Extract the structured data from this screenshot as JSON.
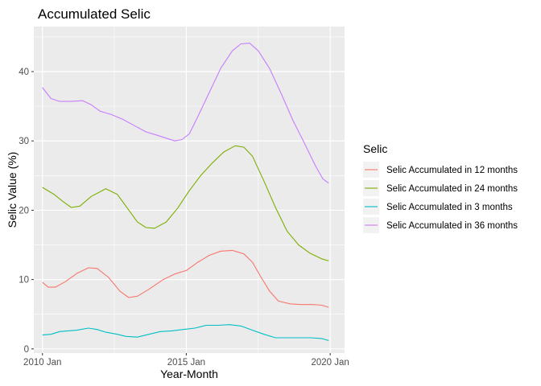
{
  "chart_data": {
    "type": "line",
    "title": "Accumulated Selic",
    "xlabel": "Year-Month",
    "ylabel": "Selic Value (%)",
    "x_ticks": [
      "2010 Jan",
      "2015 Jan",
      "2020 Jan"
    ],
    "y_ticks": [
      0,
      10,
      20,
      30,
      40
    ],
    "xlim": [
      2009.7,
      2020.5
    ],
    "ylim": [
      -0.6,
      46.5
    ],
    "grid": true,
    "background": "#EBEBEB",
    "legend": {
      "title": "Selic",
      "position": "right"
    },
    "series": [
      {
        "name": "Selic Accumulated in 12 months",
        "color": "#F8766D",
        "points": [
          [
            2010.0,
            9.6
          ],
          [
            2010.2,
            8.9
          ],
          [
            2010.45,
            8.9
          ],
          [
            2010.8,
            9.7
          ],
          [
            2011.2,
            10.9
          ],
          [
            2011.6,
            11.7
          ],
          [
            2011.9,
            11.6
          ],
          [
            2012.3,
            10.3
          ],
          [
            2012.7,
            8.3
          ],
          [
            2013.0,
            7.4
          ],
          [
            2013.3,
            7.6
          ],
          [
            2013.7,
            8.6
          ],
          [
            2014.2,
            10.0
          ],
          [
            2014.6,
            10.8
          ],
          [
            2015.0,
            11.3
          ],
          [
            2015.4,
            12.5
          ],
          [
            2015.8,
            13.5
          ],
          [
            2016.2,
            14.1
          ],
          [
            2016.6,
            14.2
          ],
          [
            2017.0,
            13.7
          ],
          [
            2017.3,
            12.5
          ],
          [
            2017.6,
            10.3
          ],
          [
            2017.9,
            8.3
          ],
          [
            2018.2,
            6.9
          ],
          [
            2018.6,
            6.5
          ],
          [
            2019.0,
            6.4
          ],
          [
            2019.4,
            6.4
          ],
          [
            2019.7,
            6.3
          ],
          [
            2019.95,
            6.0
          ]
        ]
      },
      {
        "name": "Selic Accumulated in 24 months",
        "color": "#7CAE00",
        "points": [
          [
            2010.0,
            23.3
          ],
          [
            2010.4,
            22.3
          ],
          [
            2010.7,
            21.3
          ],
          [
            2011.0,
            20.4
          ],
          [
            2011.3,
            20.6
          ],
          [
            2011.7,
            22.0
          ],
          [
            2012.2,
            23.1
          ],
          [
            2012.6,
            22.3
          ],
          [
            2012.9,
            20.6
          ],
          [
            2013.3,
            18.3
          ],
          [
            2013.6,
            17.5
          ],
          [
            2013.9,
            17.4
          ],
          [
            2014.3,
            18.3
          ],
          [
            2014.7,
            20.3
          ],
          [
            2015.1,
            22.8
          ],
          [
            2015.5,
            25.0
          ],
          [
            2015.9,
            26.8
          ],
          [
            2016.3,
            28.4
          ],
          [
            2016.7,
            29.3
          ],
          [
            2017.0,
            29.1
          ],
          [
            2017.3,
            27.8
          ],
          [
            2017.7,
            24.2
          ],
          [
            2018.1,
            20.4
          ],
          [
            2018.5,
            17.0
          ],
          [
            2018.9,
            15.0
          ],
          [
            2019.3,
            13.8
          ],
          [
            2019.7,
            13.0
          ],
          [
            2019.95,
            12.7
          ]
        ]
      },
      {
        "name": "Selic Accumulated in 3 months",
        "color": "#00BFC4",
        "points": [
          [
            2010.0,
            2.0
          ],
          [
            2010.3,
            2.1
          ],
          [
            2010.6,
            2.5
          ],
          [
            2010.9,
            2.6
          ],
          [
            2011.2,
            2.7
          ],
          [
            2011.6,
            3.0
          ],
          [
            2011.9,
            2.8
          ],
          [
            2012.2,
            2.4
          ],
          [
            2012.6,
            2.1
          ],
          [
            2012.9,
            1.8
          ],
          [
            2013.3,
            1.7
          ],
          [
            2013.7,
            2.1
          ],
          [
            2014.1,
            2.5
          ],
          [
            2014.5,
            2.6
          ],
          [
            2014.9,
            2.8
          ],
          [
            2015.3,
            3.0
          ],
          [
            2015.7,
            3.4
          ],
          [
            2016.1,
            3.4
          ],
          [
            2016.5,
            3.5
          ],
          [
            2016.9,
            3.3
          ],
          [
            2017.3,
            2.7
          ],
          [
            2017.7,
            2.1
          ],
          [
            2018.1,
            1.6
          ],
          [
            2018.5,
            1.6
          ],
          [
            2018.9,
            1.6
          ],
          [
            2019.3,
            1.6
          ],
          [
            2019.7,
            1.5
          ],
          [
            2019.95,
            1.2
          ]
        ]
      },
      {
        "name": "Selic Accumulated in 36 months",
        "color": "#C77CFF",
        "points": [
          [
            2010.0,
            37.7
          ],
          [
            2010.3,
            36.1
          ],
          [
            2010.6,
            35.7
          ],
          [
            2011.0,
            35.7
          ],
          [
            2011.4,
            35.8
          ],
          [
            2011.7,
            35.2
          ],
          [
            2012.0,
            34.3
          ],
          [
            2012.4,
            33.8
          ],
          [
            2012.8,
            33.1
          ],
          [
            2013.2,
            32.2
          ],
          [
            2013.6,
            31.3
          ],
          [
            2014.0,
            30.8
          ],
          [
            2014.3,
            30.4
          ],
          [
            2014.6,
            30.0
          ],
          [
            2014.85,
            30.2
          ],
          [
            2015.1,
            31.0
          ],
          [
            2015.4,
            33.5
          ],
          [
            2015.8,
            37.0
          ],
          [
            2016.2,
            40.5
          ],
          [
            2016.6,
            43.0
          ],
          [
            2016.9,
            44.0
          ],
          [
            2017.2,
            44.1
          ],
          [
            2017.5,
            43.0
          ],
          [
            2017.9,
            40.4
          ],
          [
            2018.3,
            36.8
          ],
          [
            2018.7,
            33.0
          ],
          [
            2019.1,
            29.7
          ],
          [
            2019.5,
            26.3
          ],
          [
            2019.75,
            24.5
          ],
          [
            2019.95,
            23.9
          ]
        ]
      }
    ]
  }
}
